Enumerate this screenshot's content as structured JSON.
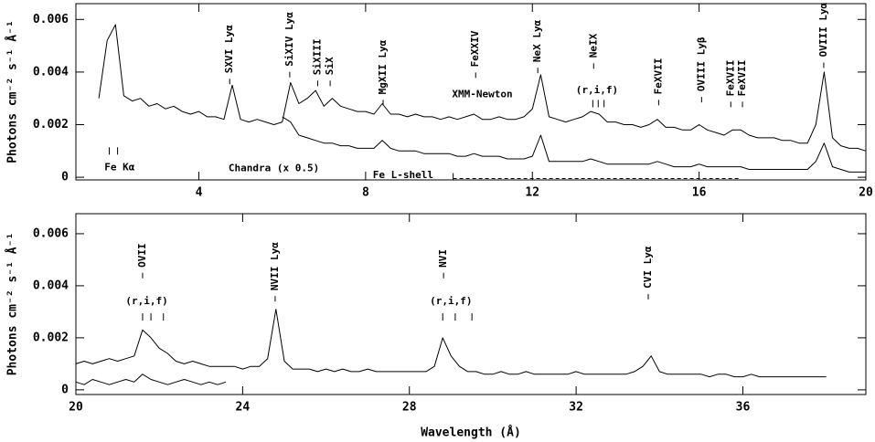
{
  "chart_data": [
    {
      "type": "line",
      "ylabel": "Photons cm⁻² s⁻¹ Å⁻¹",
      "xlim": [
        1.05,
        20
      ],
      "ylim": [
        -0.0001,
        0.0066
      ],
      "xticks": [
        4,
        8,
        12,
        16,
        20
      ],
      "yticks": [
        0,
        0.002,
        0.004,
        0.006
      ],
      "x": [
        1.6,
        1.8,
        2.0,
        2.2,
        2.4,
        2.6,
        2.8,
        3.0,
        3.2,
        3.4,
        3.6,
        3.8,
        4.0,
        4.2,
        4.4,
        4.6,
        4.8,
        5.0,
        5.2,
        5.4,
        5.6,
        5.8,
        6.0,
        6.2,
        6.4,
        6.6,
        6.8,
        7.0,
        7.2,
        7.4,
        7.6,
        7.8,
        8.0,
        8.2,
        8.4,
        8.6,
        8.8,
        9.0,
        9.2,
        9.4,
        9.6,
        9.8,
        10.0,
        10.2,
        10.4,
        10.6,
        10.8,
        11.0,
        11.2,
        11.4,
        11.6,
        11.8,
        12.0,
        12.2,
        12.4,
        12.6,
        12.8,
        13.0,
        13.2,
        13.4,
        13.6,
        13.8,
        14.0,
        14.2,
        14.4,
        14.6,
        14.8,
        15.0,
        15.2,
        15.4,
        15.6,
        15.8,
        16.0,
        16.2,
        16.4,
        16.6,
        16.8,
        17.0,
        17.2,
        17.4,
        17.6,
        17.8,
        18.0,
        18.2,
        18.4,
        18.6,
        18.8,
        19.0,
        19.2,
        19.4,
        19.6,
        19.8,
        20.0
      ],
      "series": [
        {
          "color": "#000000",
          "values": [
            0.003,
            0.0052,
            0.0058,
            0.0031,
            0.0029,
            0.003,
            0.0027,
            0.0028,
            0.0026,
            0.0027,
            0.0025,
            0.0024,
            0.0025,
            0.0023,
            0.0023,
            0.0022,
            0.0035,
            0.0022,
            0.0021,
            0.0022,
            0.0021,
            0.002,
            0.0021,
            0.0036,
            0.0028,
            0.003,
            0.0033,
            0.0027,
            0.003,
            0.0027,
            0.0026,
            0.0025,
            0.0025,
            0.0024,
            0.0028,
            0.0024,
            0.0024,
            0.0023,
            0.0024,
            0.0023,
            0.0023,
            0.0022,
            0.0023,
            0.0022,
            0.0023,
            0.0024,
            0.0022,
            0.0022,
            0.0023,
            0.0022,
            0.0022,
            0.0023,
            0.0026,
            0.0039,
            0.0023,
            0.0022,
            0.0021,
            0.0022,
            0.0023,
            0.0025,
            0.0024,
            0.0021,
            0.0021,
            0.002,
            0.002,
            0.0019,
            0.002,
            0.0022,
            0.0019,
            0.0019,
            0.0018,
            0.0018,
            0.002,
            0.0018,
            0.0017,
            0.0016,
            0.0018,
            0.0018,
            0.0016,
            0.0015,
            0.0015,
            0.0015,
            0.0014,
            0.0014,
            0.0013,
            0.0013,
            0.002,
            0.004,
            0.0015,
            0.0012,
            0.0011,
            0.0011,
            0.001
          ]
        },
        {
          "color": "#000000",
          "values": [
            null,
            null,
            null,
            null,
            null,
            null,
            null,
            null,
            null,
            null,
            null,
            null,
            null,
            null,
            null,
            null,
            null,
            null,
            null,
            null,
            null,
            null,
            0.0023,
            0.0021,
            0.0016,
            0.0015,
            0.0014,
            0.0013,
            0.0013,
            0.0012,
            0.0012,
            0.0011,
            0.0011,
            0.0011,
            0.0014,
            0.0011,
            0.001,
            0.001,
            0.001,
            0.0009,
            0.0009,
            0.0009,
            0.0009,
            0.0008,
            0.0008,
            0.0009,
            0.0008,
            0.0008,
            0.0008,
            0.0007,
            0.0007,
            0.0007,
            0.0008,
            0.0016,
            0.0006,
            0.0006,
            0.0006,
            0.0006,
            0.0006,
            0.0007,
            0.0006,
            0.0005,
            0.0005,
            0.0005,
            0.0005,
            0.0005,
            0.0005,
            0.0006,
            0.0005,
            0.0004,
            0.0004,
            0.0004,
            0.0005,
            0.0004,
            0.0004,
            0.0004,
            0.0004,
            0.0004,
            0.0003,
            0.0003,
            0.0003,
            0.0003,
            0.0003,
            0.0003,
            0.0003,
            0.0003,
            0.0006,
            0.0013,
            0.0004,
            0.0003,
            0.0002,
            0.0002,
            0.0002
          ]
        }
      ],
      "line_labels": [
        {
          "text": "SXVI Lyα",
          "x": 4.74,
          "y": 0.00364
        },
        {
          "text": "SiXIV Lyα",
          "x": 6.18,
          "y": 0.0039
        },
        {
          "text": "SiXIII",
          "x": 6.85,
          "y": 0.00357
        },
        {
          "text": "SiX",
          "x": 7.15,
          "y": 0.00357
        },
        {
          "text": "MgXII Lyα",
          "x": 8.42,
          "y": 0.00284
        },
        {
          "text": "FeXXIV",
          "x": 10.64,
          "y": 0.00388
        },
        {
          "text": "NeX Lyα",
          "x": 12.13,
          "y": 0.00406
        },
        {
          "text": "NeIX",
          "x": 13.47,
          "y": 0.00423
        },
        {
          "text": "FeXVII",
          "x": 15.03,
          "y": 0.00284
        },
        {
          "text": "OVIII Lyβ",
          "x": 16.06,
          "y": 0.00295
        },
        {
          "text": "FeXVII",
          "x": 16.76,
          "y": 0.00277
        },
        {
          "text": "FeXVII",
          "x": 17.04,
          "y": 0.00277
        },
        {
          "text": "OVIII Lyα",
          "x": 18.99,
          "y": 0.00426
        }
      ],
      "text_labels": [
        {
          "text": "XMM-Newton",
          "x": 10.8,
          "y": 0.00315
        },
        {
          "text": "Chandra (x 0.5)",
          "x": 5.8,
          "y": 0.00033
        },
        {
          "text": "Fe Kα",
          "x": 2.1,
          "y": 0.00037
        },
        {
          "text": "(r,i,f)",
          "x": 13.55,
          "y": 0.0033
        },
        {
          "text": "Fe L-shell",
          "x": 8.9,
          "y": 8e-05
        }
      ],
      "tick_groups": [
        {
          "x": [
            1.85,
            2.05
          ],
          "y": 0.001
        },
        {
          "x": [
            13.45,
            13.58,
            13.72
          ],
          "y": 0.0028
        }
      ],
      "dashed_lines": [
        {
          "x": [
            10.1,
            17.0
          ],
          "y": -5e-05
        }
      ]
    },
    {
      "type": "line",
      "ylabel": "Photons cm⁻² s⁻¹ Å⁻¹",
      "xlabel": "Wavelength (Å)",
      "xlim": [
        20,
        38.95
      ],
      "ylim": [
        -0.00018,
        0.00677
      ],
      "xticks": [
        20,
        24,
        28,
        32,
        36
      ],
      "yticks": [
        0,
        0.002,
        0.004,
        0.006
      ],
      "x": [
        20.0,
        20.2,
        20.4,
        20.6,
        20.8,
        21.0,
        21.2,
        21.4,
        21.6,
        21.8,
        22.0,
        22.2,
        22.4,
        22.6,
        22.8,
        23.0,
        23.2,
        23.4,
        23.6,
        23.8,
        24.0,
        24.2,
        24.4,
        24.6,
        24.8,
        25.0,
        25.2,
        25.4,
        25.6,
        25.8,
        26.0,
        26.2,
        26.4,
        26.6,
        26.8,
        27.0,
        27.2,
        27.4,
        27.6,
        27.8,
        28.0,
        28.2,
        28.4,
        28.6,
        28.8,
        29.0,
        29.2,
        29.4,
        29.6,
        29.8,
        30.0,
        30.2,
        30.4,
        30.6,
        30.8,
        31.0,
        31.2,
        31.4,
        31.6,
        31.8,
        32.0,
        32.2,
        32.4,
        32.6,
        32.8,
        33.0,
        33.2,
        33.4,
        33.6,
        33.8,
        34.0,
        34.2,
        34.4,
        34.6,
        34.8,
        35.0,
        35.2,
        35.4,
        35.6,
        35.8,
        36.0,
        36.2,
        36.4,
        36.6,
        36.8,
        37.0,
        37.2,
        37.4,
        37.6,
        37.8,
        38.0
      ],
      "series": [
        {
          "color": "#000000",
          "values": [
            0.001,
            0.0011,
            0.001,
            0.0011,
            0.0012,
            0.0011,
            0.0012,
            0.0013,
            0.0023,
            0.002,
            0.0016,
            0.0014,
            0.0011,
            0.001,
            0.0011,
            0.001,
            0.0009,
            0.0009,
            0.0009,
            0.0009,
            0.0008,
            0.0009,
            0.0009,
            0.0012,
            0.0031,
            0.0011,
            0.0008,
            0.0008,
            0.0008,
            0.0007,
            0.0008,
            0.0007,
            0.0008,
            0.0007,
            0.0007,
            0.0008,
            0.0007,
            0.0007,
            0.0007,
            0.0007,
            0.0007,
            0.0007,
            0.0007,
            0.0009,
            0.002,
            0.0013,
            0.0009,
            0.0007,
            0.0007,
            0.0006,
            0.0006,
            0.0007,
            0.0006,
            0.0006,
            0.0007,
            0.0006,
            0.0006,
            0.0006,
            0.0006,
            0.0006,
            0.0007,
            0.0006,
            0.0006,
            0.0006,
            0.0006,
            0.0006,
            0.0006,
            0.0007,
            0.0009,
            0.0013,
            0.0007,
            0.0006,
            0.0006,
            0.0006,
            0.0006,
            0.0006,
            0.0005,
            0.0006,
            0.0006,
            0.0005,
            0.0005,
            0.0006,
            0.0005,
            0.0005,
            0.0005,
            0.0005,
            0.0005,
            0.0005,
            0.0005,
            0.0005,
            0.0005
          ]
        },
        {
          "color": "#000000",
          "values": [
            0.0003,
            0.0002,
            0.0004,
            0.0003,
            0.0002,
            0.0003,
            0.0004,
            0.0003,
            0.0006,
            0.0004,
            0.0003,
            0.0002,
            0.0003,
            0.0004,
            0.0003,
            0.0002,
            0.0003,
            0.0002,
            0.0003,
            null,
            null,
            null,
            null,
            null,
            null,
            null,
            null,
            null,
            null,
            null,
            null,
            null,
            null,
            null,
            null,
            null,
            null,
            null,
            null,
            null,
            null,
            null,
            null,
            null,
            null,
            null,
            null,
            null,
            null,
            null,
            null,
            null,
            null,
            null,
            null,
            null,
            null,
            null,
            null,
            null,
            null,
            null,
            null,
            null,
            null,
            null,
            null,
            null,
            null,
            null,
            null,
            null,
            null,
            null,
            null,
            null,
            null,
            null,
            null,
            null,
            null,
            null,
            null,
            null,
            null,
            null,
            null,
            null,
            null,
            null,
            null
          ]
        }
      ],
      "line_labels": [
        {
          "text": "OVII",
          "x": 21.6,
          "y": 0.00439
        },
        {
          "text": "NVII Lyα",
          "x": 24.78,
          "y": 0.0035
        },
        {
          "text": "NVI",
          "x": 28.82,
          "y": 0.00439
        },
        {
          "text": "CVI Lyα",
          "x": 33.73,
          "y": 0.00358
        }
      ],
      "text_labels": [
        {
          "text": "(r,i,f)",
          "x": 21.7,
          "y": 0.0034
        },
        {
          "text": "(r,i,f)",
          "x": 29.0,
          "y": 0.0034
        }
      ],
      "tick_groups": [
        {
          "x": [
            21.6,
            21.8,
            22.1
          ],
          "y": 0.0028
        },
        {
          "x": [
            28.8,
            29.1,
            29.5
          ],
          "y": 0.0028
        }
      ],
      "dashed_lines": []
    }
  ]
}
